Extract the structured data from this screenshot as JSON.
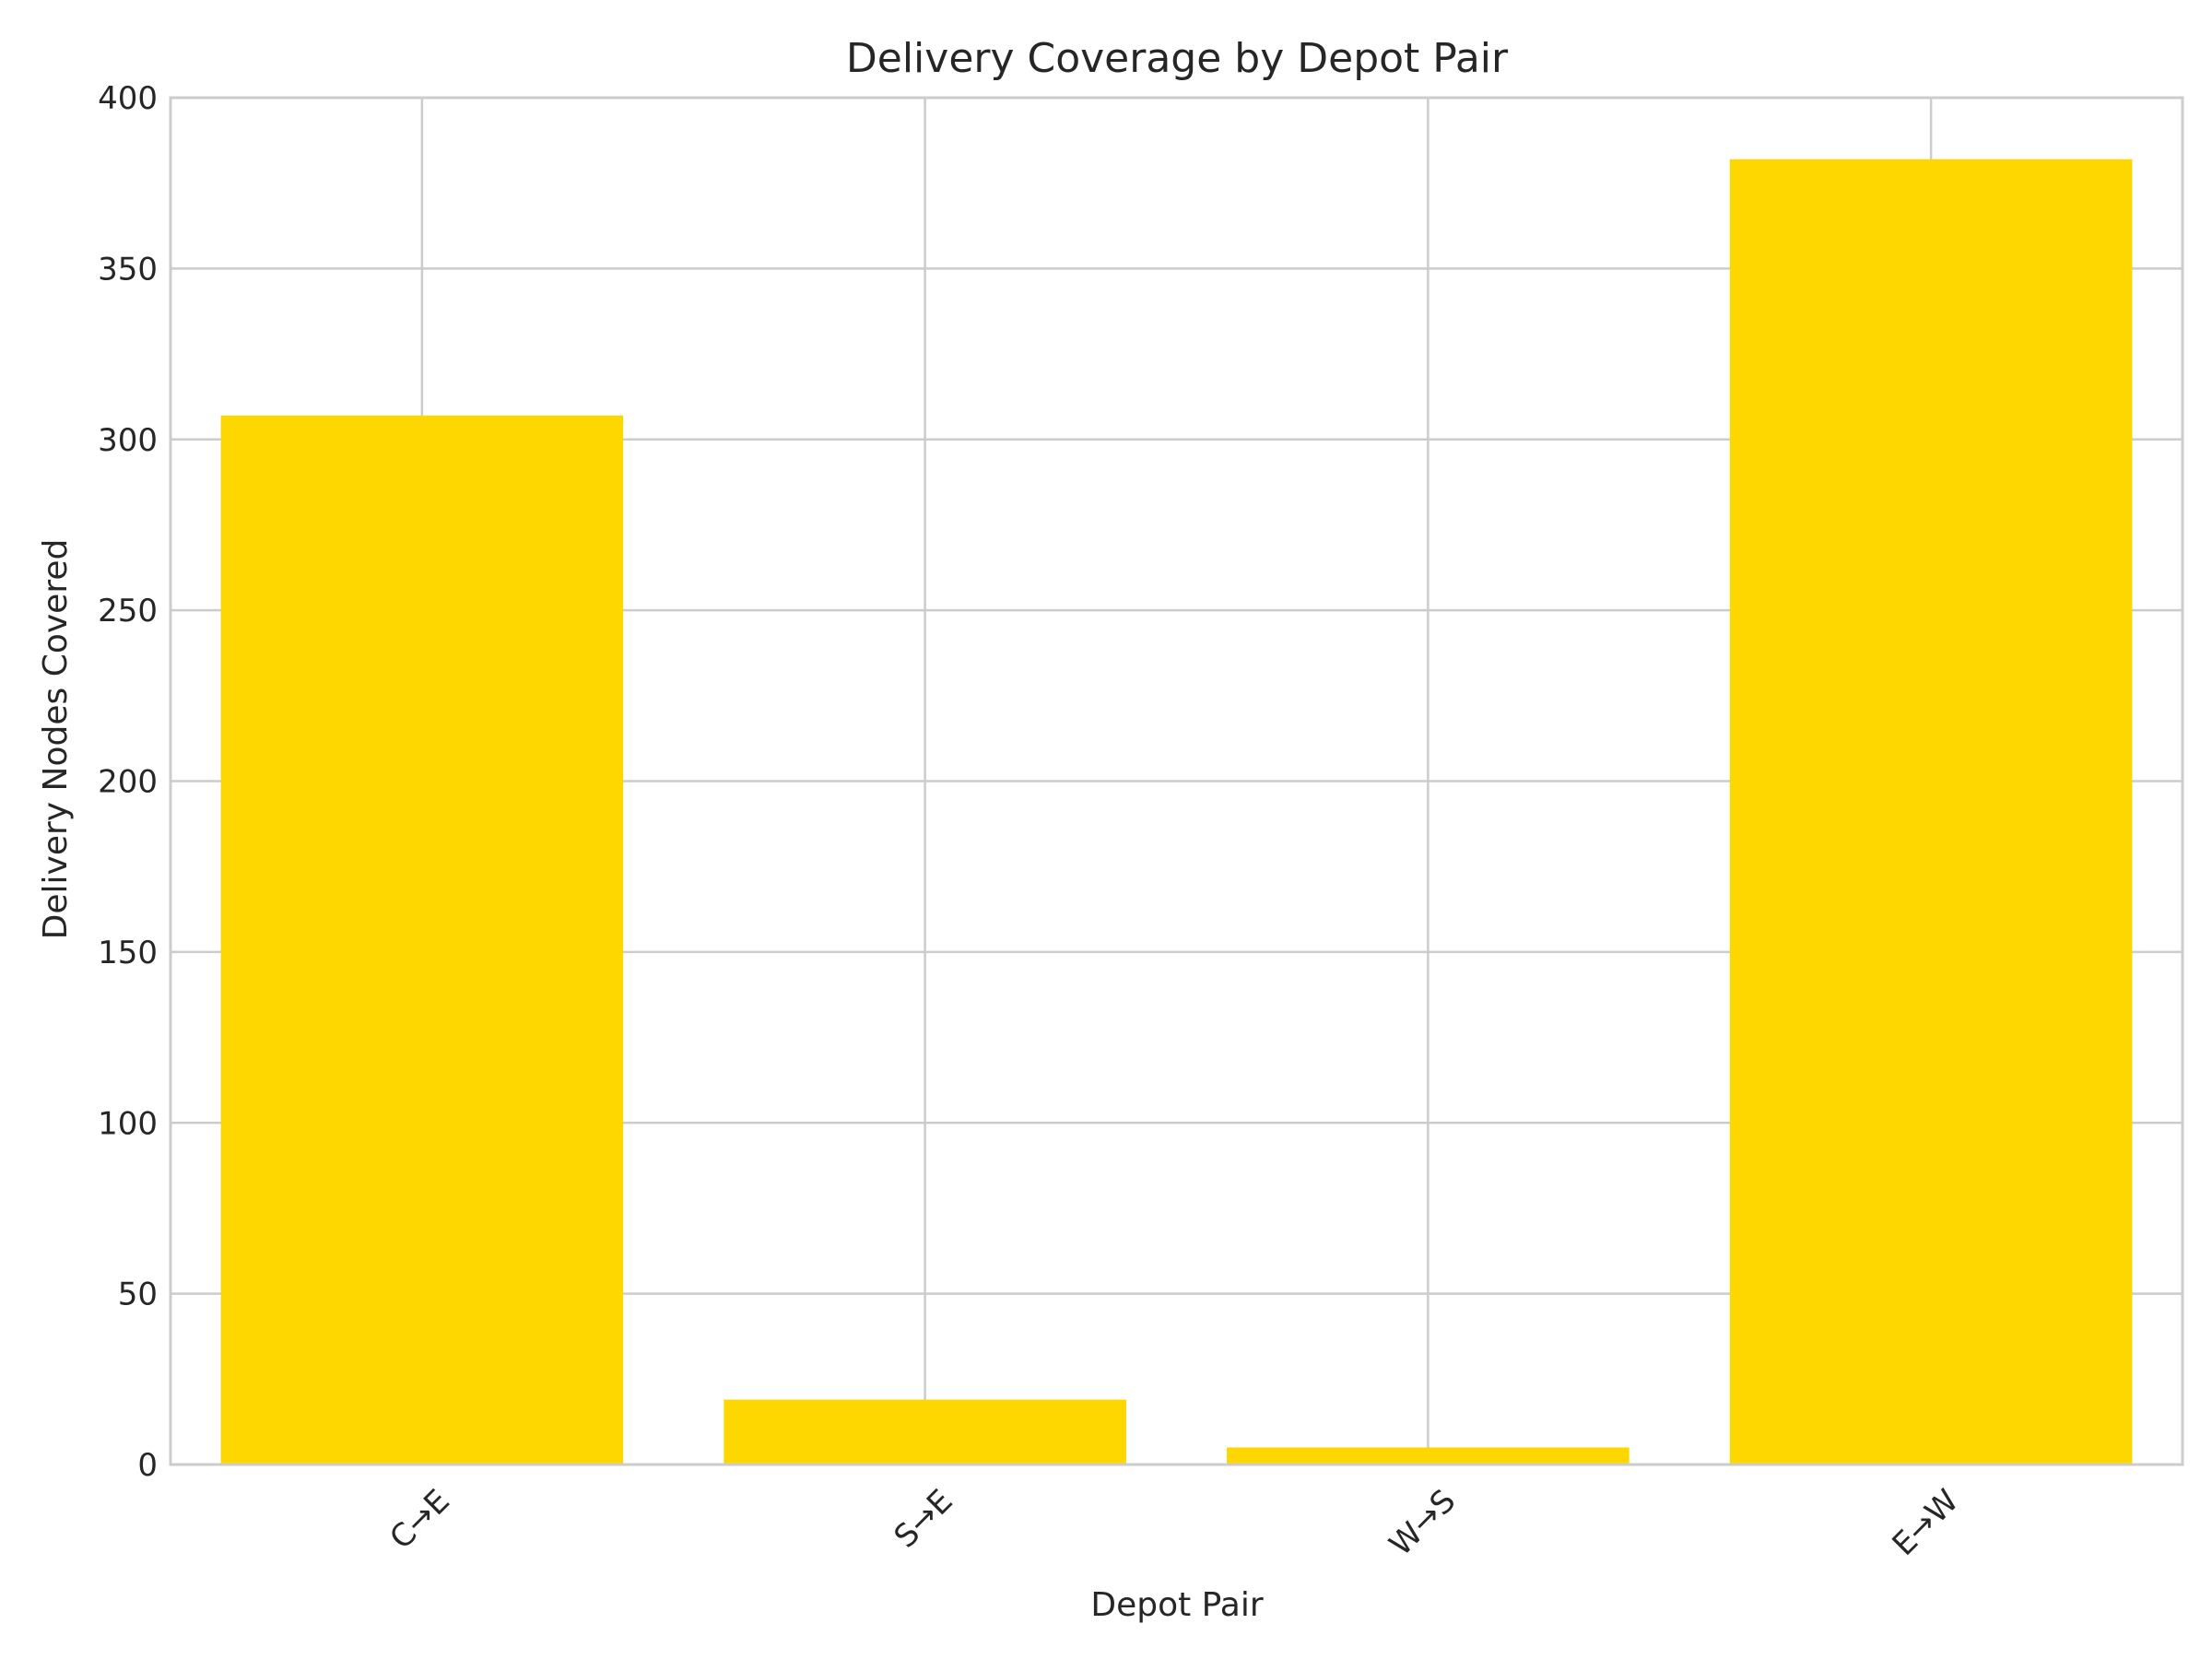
{
  "chart_data": {
    "type": "bar",
    "title": "Delivery Coverage by Depot Pair",
    "xlabel": "Depot Pair",
    "ylabel": "Delivery Nodes Covered",
    "categories": [
      "C→E",
      "S→E",
      "W→S",
      "E→W"
    ],
    "values": [
      307,
      19,
      5,
      382
    ],
    "ylim": [
      0,
      400
    ],
    "yticks": [
      0,
      50,
      100,
      150,
      200,
      250,
      300,
      350,
      400
    ],
    "bar_color": "#FFD700",
    "grid": true,
    "tick_rotation_deg": 45
  }
}
